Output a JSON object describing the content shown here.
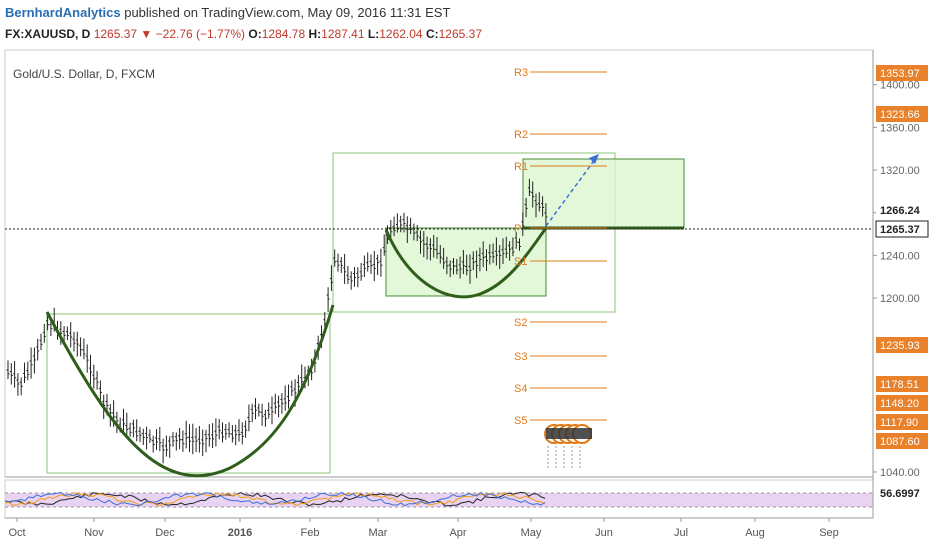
{
  "header": {
    "author": "BernhardAnalytics",
    "published": "published on TradingView.com, May 09, 2016 11:31 EST",
    "symbol": "FX:XAUUSD, D",
    "last": "1265.37",
    "change": "−22.76 (−1.77%)",
    "open_label": "O:",
    "open": "1284.78",
    "high_label": "H:",
    "high": "1287.41",
    "low_label": "L:",
    "low": "1262.04",
    "close_label": "C:",
    "close": "1265.37"
  },
  "chart_title": "Gold/U.S. Dollar, D, FXCM",
  "rsi_value": "56.6997",
  "colors": {
    "candles": "#222222",
    "curve": "#2e5e1a",
    "box_stroke": "#8cc67a",
    "box_fill": "#d8f5cc",
    "pivot": "#e07b1a",
    "label_orange": "#e8812a",
    "rsi_band": "#e9d3f3",
    "arrow": "#3b6fd6"
  },
  "chart_data": {
    "type": "candlestick",
    "x_ticks": [
      "Oct",
      "Nov",
      "Dec",
      "2016",
      "Feb",
      "Mar",
      "Apr",
      "May",
      "Jun",
      "Jul",
      "Aug",
      "Sep"
    ],
    "y_ticks": [
      1040,
      1200,
      1240,
      1280,
      1320,
      1360,
      1400
    ],
    "price_labels": [
      {
        "text": "1353.97",
        "value": 1353.97,
        "style": "orange"
      },
      {
        "text": "1323.66",
        "value": 1323.66,
        "style": "orange"
      },
      {
        "text": "1266.24",
        "value": 1266.24,
        "style": "dark"
      },
      {
        "text": "1265.37",
        "value": 1265.37,
        "style": "white"
      },
      {
        "text": "1235.93",
        "value": 1235.93,
        "style": "orange"
      },
      {
        "text": "1178.51",
        "value": 1178.51,
        "style": "orange"
      },
      {
        "text": "1148.20",
        "value": 1148.2,
        "style": "orange"
      },
      {
        "text": "1117.90",
        "value": 1117.9,
        "style": "orange"
      },
      {
        "text": "1087.60",
        "value": 1087.6,
        "style": "orange"
      }
    ],
    "pivots": [
      {
        "label": "R3",
        "value": 1353.97
      },
      {
        "label": "R2",
        "value": 1323.66
      },
      {
        "label": "R1",
        "value": 1296.1
      },
      {
        "label": "P",
        "value": 1266.24
      },
      {
        "label": "S1",
        "value": 1235.93
      },
      {
        "label": "S2",
        "value": 1178.51
      },
      {
        "label": "S3",
        "value": 1148.2
      },
      {
        "label": "S4",
        "value": 1117.9
      },
      {
        "label": "S5",
        "value": 1087.6
      }
    ],
    "rsi_last": 56.6997
  }
}
